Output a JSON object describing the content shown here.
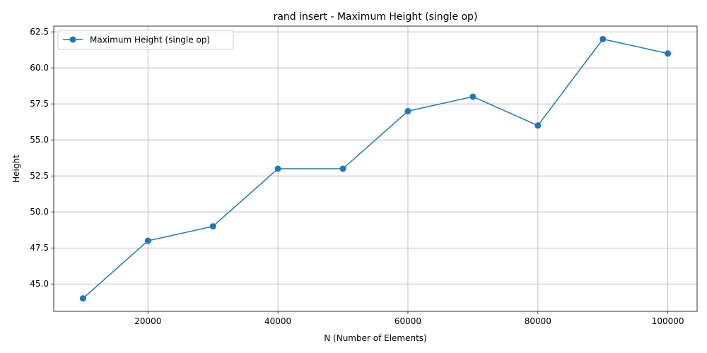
{
  "chart_data": {
    "type": "line",
    "title": "rand insert - Maximum Height (single op)",
    "xlabel": "N (Number of Elements)",
    "ylabel": "Height",
    "x": [
      10000,
      20000,
      30000,
      40000,
      50000,
      60000,
      70000,
      80000,
      90000,
      100000
    ],
    "series": [
      {
        "name": "Maximum Height (single op)",
        "values": [
          44,
          48,
          49,
          53,
          53,
          57,
          58,
          56,
          62,
          61
        ],
        "color": "#1f77b4",
        "marker": "circle"
      }
    ],
    "xlim": [
      5500,
      104500
    ],
    "ylim": [
      43.1,
      62.9
    ],
    "xticks": [
      20000,
      40000,
      60000,
      80000,
      100000
    ],
    "xtick_labels": [
      "20000",
      "40000",
      "60000",
      "80000",
      "100000"
    ],
    "yticks": [
      45.0,
      47.5,
      50.0,
      52.5,
      55.0,
      57.5,
      60.0,
      62.5
    ],
    "ytick_labels": [
      "45.0",
      "47.5",
      "50.0",
      "52.5",
      "55.0",
      "57.5",
      "60.0",
      "62.5"
    ],
    "grid": true,
    "legend_position": "top-left"
  }
}
